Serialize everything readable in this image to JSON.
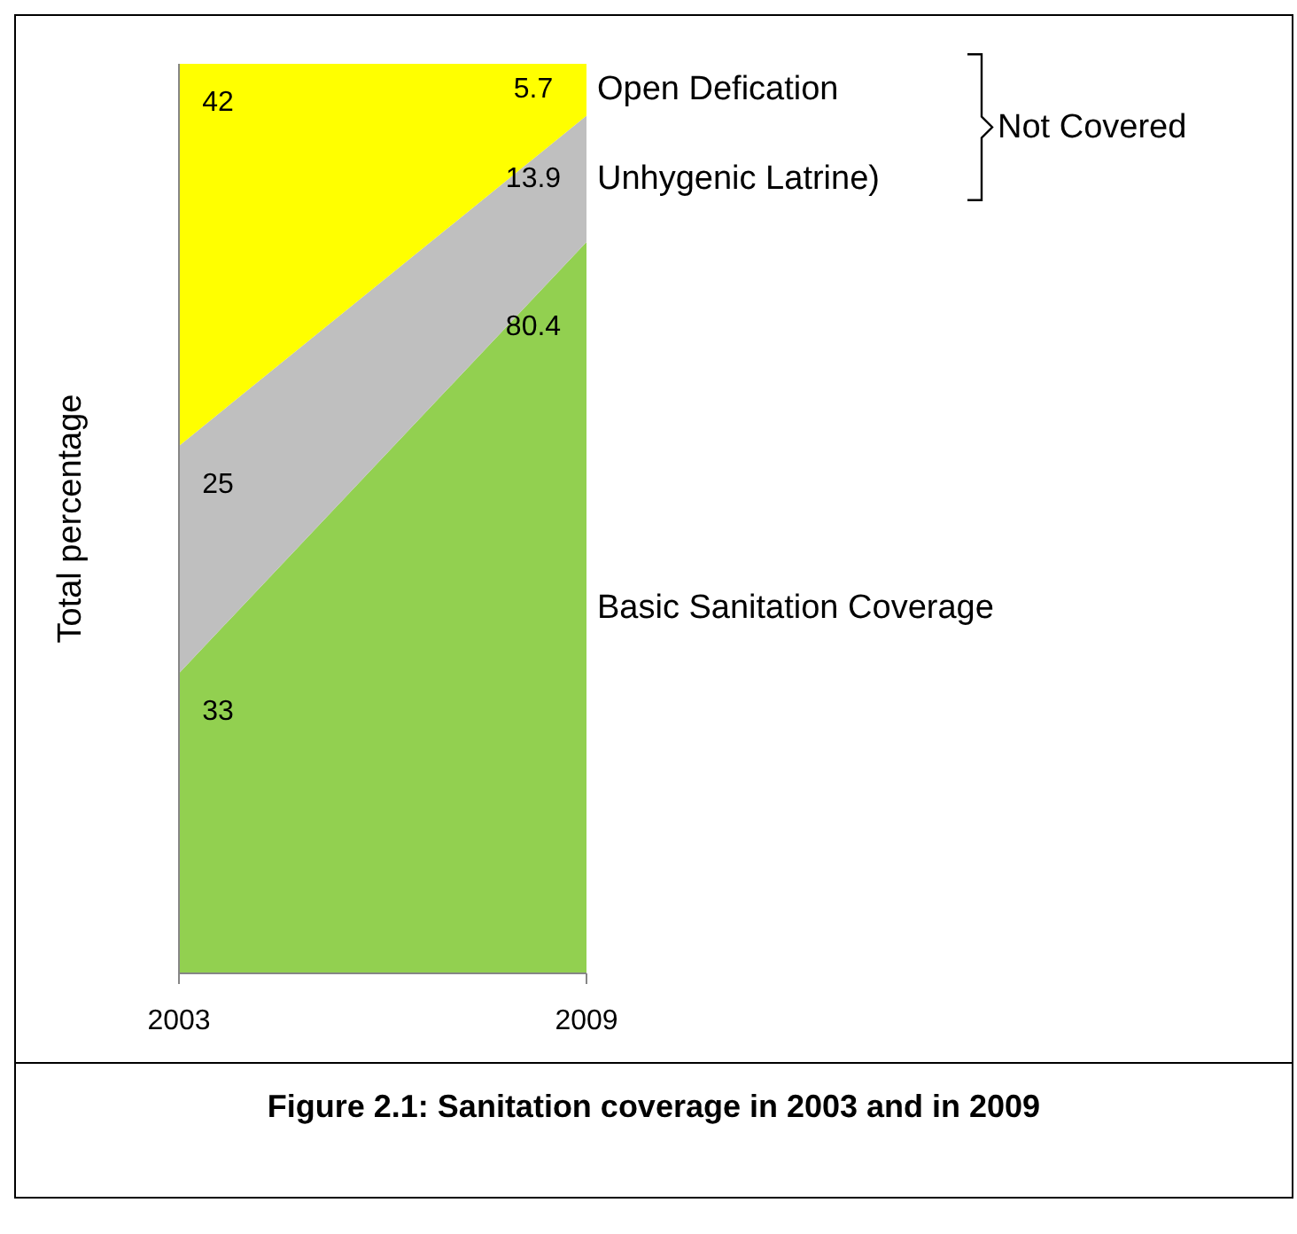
{
  "chart_data": {
    "type": "area",
    "title": "Figure 2.1: Sanitation coverage in 2003 and in 2009",
    "ylabel": "Total percentage",
    "categories": [
      "2003",
      "2009"
    ],
    "stacked": true,
    "data_labels": true,
    "tick_labels": "x",
    "legend": false,
    "series": [
      {
        "name": "Basic Sanitation Coverage",
        "color": "#92d050",
        "values": [
          33,
          80.4
        ]
      },
      {
        "name": "Unhygenic Latrine)",
        "color": "#bfbfbf",
        "values": [
          25,
          13.9
        ]
      },
      {
        "name": "Open Defication",
        "color": "#ffff00",
        "values": [
          42,
          5.7
        ]
      }
    ],
    "annotations": [
      "Not Covered"
    ]
  }
}
